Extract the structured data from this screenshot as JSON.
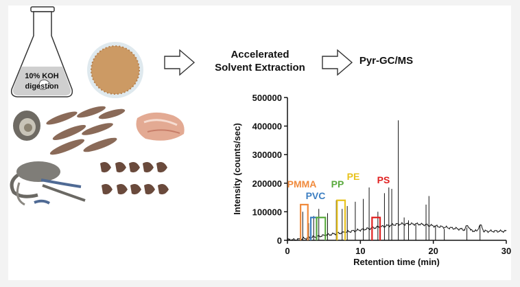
{
  "flask_label": {
    "line1": "10% KOH",
    "line2": "digestion"
  },
  "steps": {
    "step1_line1": "Accelerated",
    "step1_line2": "Solvent Extraction",
    "step2": "Pyr-GC/MS"
  },
  "colors": {
    "PMMA": "#f08a3c",
    "PVC": "#3d7fc2",
    "PP": "#5aaa3e",
    "PE": "#e8c21c",
    "PS": "#e02020"
  },
  "chart_data": {
    "type": "line",
    "xlabel": "Retention time (min)",
    "ylabel": "Intensity (counts/sec)",
    "xlim": [
      0,
      30
    ],
    "ylim": [
      0,
      500000
    ],
    "xticks": [
      "0",
      "10",
      "20",
      "30"
    ],
    "yticks": [
      "0",
      "100000",
      "200000",
      "300000",
      "400000",
      "500000"
    ],
    "peaks": [
      {
        "x": 2.1,
        "y": 100000
      },
      {
        "x": 2.9,
        "y": 60000
      },
      {
        "x": 3.6,
        "y": 85000
      },
      {
        "x": 4.3,
        "y": 110000
      },
      {
        "x": 5.5,
        "y": 95000
      },
      {
        "x": 6.7,
        "y": 140000
      },
      {
        "x": 7.5,
        "y": 110000
      },
      {
        "x": 8.2,
        "y": 120000
      },
      {
        "x": 9.3,
        "y": 135000
      },
      {
        "x": 10.4,
        "y": 145000
      },
      {
        "x": 11.2,
        "y": 185000
      },
      {
        "x": 12.4,
        "y": 100000
      },
      {
        "x": 13.3,
        "y": 165000
      },
      {
        "x": 13.9,
        "y": 185000
      },
      {
        "x": 14.3,
        "y": 180000
      },
      {
        "x": 15.2,
        "y": 420000
      },
      {
        "x": 16.0,
        "y": 80000
      },
      {
        "x": 16.6,
        "y": 70000
      },
      {
        "x": 17.6,
        "y": 55000
      },
      {
        "x": 19.0,
        "y": 125000
      },
      {
        "x": 19.4,
        "y": 155000
      },
      {
        "x": 20.3,
        "y": 50000
      },
      {
        "x": 21.5,
        "y": 40000
      },
      {
        "x": 24.6,
        "y": 45000
      },
      {
        "x": 26.4,
        "y": 55000
      }
    ],
    "polymer_markers": [
      {
        "name": "PMMA",
        "x_range": [
          1.8,
          2.8
        ],
        "top": 125000
      },
      {
        "name": "PVC",
        "x_range": [
          3.2,
          4.0
        ],
        "top": 80000
      },
      {
        "name": "PP",
        "x_range": [
          4.0,
          5.2
        ],
        "top": 80000
      },
      {
        "name": "PE",
        "x_range": [
          6.8,
          7.9
        ],
        "top": 140000
      },
      {
        "name": "PS",
        "x_range": [
          11.6,
          12.7
        ],
        "top": 80000
      }
    ]
  }
}
